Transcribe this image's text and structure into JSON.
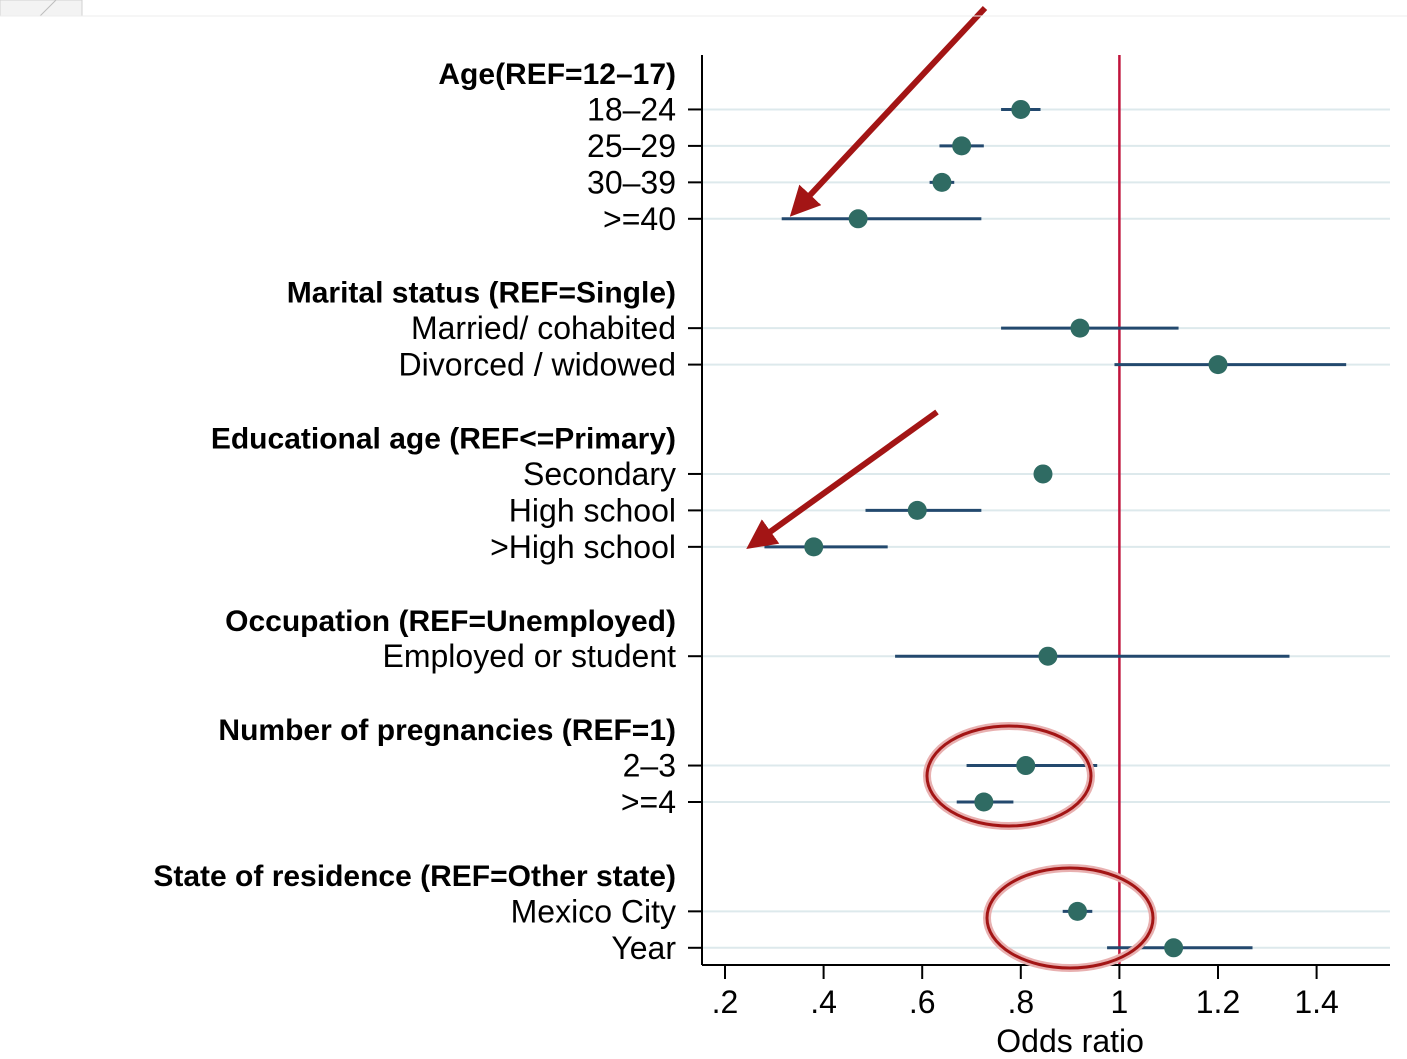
{
  "chart_data": {
    "type": "scatter",
    "xlabel": "Odds ratio",
    "xlim": [
      0.15,
      1.55
    ],
    "xticks": [
      ".2",
      ".4",
      ".6",
      ".8",
      "1",
      "1.2",
      "1.4"
    ],
    "xtick_values": [
      0.2,
      0.4,
      0.6,
      0.8,
      1.0,
      1.2,
      1.4
    ],
    "reference_line": 1.0,
    "grid": "horizontal",
    "rows": [
      {
        "label": "Age(REF=12–17)",
        "header": true
      },
      {
        "label": "18–24",
        "or": 0.8,
        "lo": 0.76,
        "hi": 0.84
      },
      {
        "label": "25–29",
        "or": 0.68,
        "lo": 0.635,
        "hi": 0.725
      },
      {
        "label": "30–39",
        "or": 0.64,
        "lo": 0.615,
        "hi": 0.665
      },
      {
        "label": ">=40",
        "or": 0.47,
        "lo": 0.315,
        "hi": 0.72
      },
      {
        "gap": true
      },
      {
        "label": "Marital status (REF=Single)",
        "header": true
      },
      {
        "label": "Married/ cohabited",
        "or": 0.92,
        "lo": 0.76,
        "hi": 1.12
      },
      {
        "label": "Divorced / widowed",
        "or": 1.2,
        "lo": 0.99,
        "hi": 1.46
      },
      {
        "gap": true
      },
      {
        "label": "Educational age (REF<=Primary)",
        "header": true
      },
      {
        "label": "Secondary",
        "or": 0.845,
        "lo": 0.835,
        "hi": 0.855
      },
      {
        "label": "High school",
        "or": 0.59,
        "lo": 0.485,
        "hi": 0.72
      },
      {
        "label": ">High school",
        "or": 0.38,
        "lo": 0.28,
        "hi": 0.53
      },
      {
        "gap": true
      },
      {
        "label": "Occupation (REF=Unemployed)",
        "header": true
      },
      {
        "label": "Employed or student",
        "or": 0.855,
        "lo": 0.545,
        "hi": 1.345
      },
      {
        "gap": true
      },
      {
        "label": "Number of pregnancies (REF=1)",
        "header": true
      },
      {
        "label": "2–3",
        "or": 0.81,
        "lo": 0.69,
        "hi": 0.955
      },
      {
        "label": ">=4",
        "or": 0.725,
        "lo": 0.67,
        "hi": 0.785
      },
      {
        "gap": true
      },
      {
        "label": "State of residence (REF=Other state)",
        "header": true
      },
      {
        "label": "Mexico City",
        "or": 0.915,
        "lo": 0.885,
        "hi": 0.945
      },
      {
        "label": "Year",
        "or": 1.11,
        "lo": 0.975,
        "hi": 1.27
      }
    ],
    "annotations": {
      "arrows": [
        {
          "from_row": "Age(REF=12–17)",
          "to_row": ">=40",
          "description": "arrow"
        },
        {
          "from_row": "Educational age (REF<=Primary)",
          "to_row": ">High school",
          "description": "arrow"
        }
      ],
      "circles": [
        {
          "rows": [
            "2–3",
            ">=4"
          ]
        },
        {
          "rows": [
            "Mexico City",
            "Year"
          ]
        }
      ]
    },
    "colors": {
      "point": "#2f6b63",
      "ci_line": "#23496e",
      "reference_line": "#c0143c",
      "grid": "#dde9ec",
      "annotation": "#a31515"
    }
  }
}
